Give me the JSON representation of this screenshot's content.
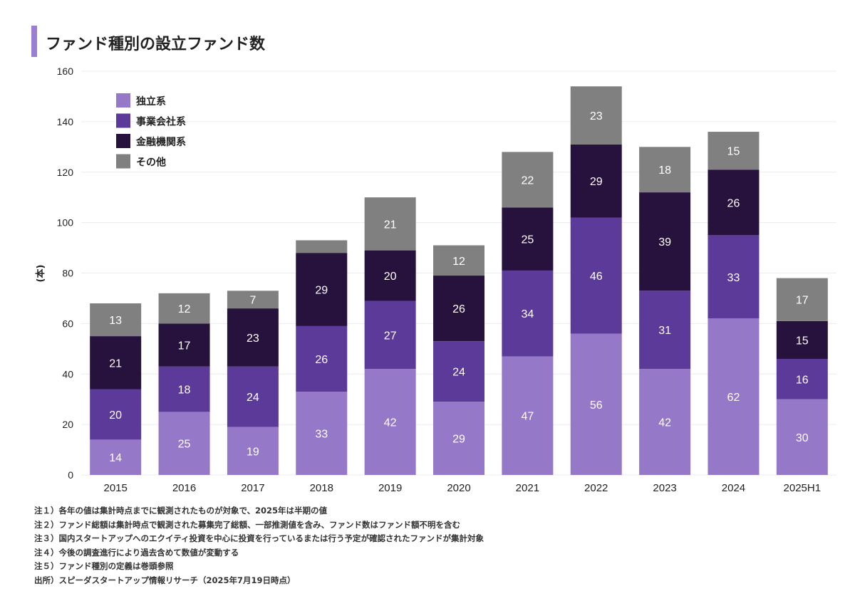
{
  "title": "ファンド種別の設立ファンド数",
  "chart_data": {
    "type": "bar",
    "stacked": true,
    "title": "ファンド種別の設立ファンド数",
    "xlabel": "",
    "ylabel": "(本)",
    "ylim": [
      0,
      160
    ],
    "yticks": [
      0,
      20,
      40,
      60,
      80,
      100,
      120,
      140,
      160
    ],
    "grid": true,
    "legend_position": "top-left",
    "categories": [
      "2015",
      "2016",
      "2017",
      "2018",
      "2019",
      "2020",
      "2021",
      "2022",
      "2023",
      "2024",
      "2025H1"
    ],
    "series": [
      {
        "name": "独立系",
        "color": "#9678c8",
        "values": [
          14,
          25,
          19,
          33,
          42,
          29,
          47,
          56,
          42,
          62,
          30
        ],
        "label_color": "#ffffff"
      },
      {
        "name": "事業会社系",
        "color": "#5c3a9a",
        "values": [
          20,
          18,
          24,
          26,
          27,
          24,
          34,
          46,
          31,
          33,
          16
        ],
        "label_color": "#ffffff"
      },
      {
        "name": "金融機関系",
        "color": "#26123d",
        "values": [
          21,
          17,
          23,
          29,
          20,
          26,
          25,
          29,
          39,
          26,
          15
        ],
        "label_color": "#ffffff"
      },
      {
        "name": "その他",
        "color": "#808080",
        "values": [
          13,
          12,
          7,
          5,
          21,
          12,
          22,
          23,
          18,
          15,
          17
        ],
        "label_color": "#ffffff",
        "hidden_labels": [
          3
        ]
      }
    ]
  },
  "notes": [
    "注１）各年の値は集計時点までに観測されたものが対象で、2025年は半期の値",
    "注２）ファンド総額は集計時点で観測された募集完了総額、一部推測値を含み、ファンド数はファンド額不明を含む",
    "注３）国内スタートアップへのエクイティ投資を中心に投資を行っているまたは行う予定が確認されたファンドが集計対象",
    "注４）今後の調査進行により過去含めて数値が変動する",
    "注５）ファンド種別の定義は巻頭参照",
    "出所）スピーダスタートアップ情報リサーチ（2025年7月19日時点）"
  ]
}
